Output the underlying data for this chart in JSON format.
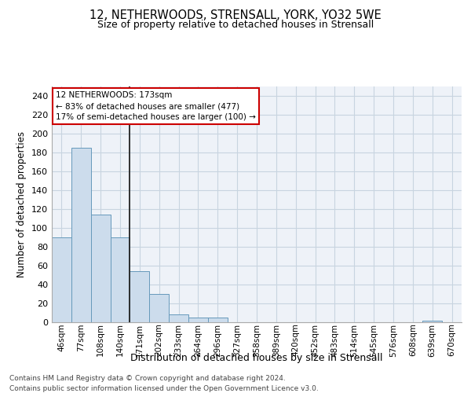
{
  "title": "12, NETHERWOODS, STRENSALL, YORK, YO32 5WE",
  "subtitle": "Size of property relative to detached houses in Strensall",
  "xlabel": "Distribution of detached houses by size in Strensall",
  "ylabel": "Number of detached properties",
  "bins": [
    "46sqm",
    "77sqm",
    "108sqm",
    "140sqm",
    "171sqm",
    "202sqm",
    "233sqm",
    "264sqm",
    "296sqm",
    "327sqm",
    "358sqm",
    "389sqm",
    "420sqm",
    "452sqm",
    "483sqm",
    "514sqm",
    "545sqm",
    "576sqm",
    "608sqm",
    "639sqm",
    "670sqm"
  ],
  "values": [
    90,
    185,
    114,
    90,
    54,
    30,
    8,
    5,
    5,
    0,
    0,
    0,
    0,
    0,
    0,
    0,
    0,
    0,
    0,
    2,
    0
  ],
  "bar_color": "#ccdcec",
  "bar_edge_color": "#6699bb",
  "vline_bin_index": 4,
  "annotation_line1": "12 NETHERWOODS: 173sqm",
  "annotation_line2": "← 83% of detached houses are smaller (477)",
  "annotation_line3": "17% of semi-detached houses are larger (100) →",
  "annotation_box_color": "#ffffff",
  "annotation_border_color": "#cc0000",
  "ylim": [
    0,
    250
  ],
  "yticks": [
    0,
    20,
    40,
    60,
    80,
    100,
    120,
    140,
    160,
    180,
    200,
    220,
    240
  ],
  "grid_color": "#c8d4e0",
  "background_color": "#eef2f8",
  "title_fontsize": 10.5,
  "subtitle_fontsize": 9,
  "footer1": "Contains HM Land Registry data © Crown copyright and database right 2024.",
  "footer2": "Contains public sector information licensed under the Open Government Licence v3.0."
}
